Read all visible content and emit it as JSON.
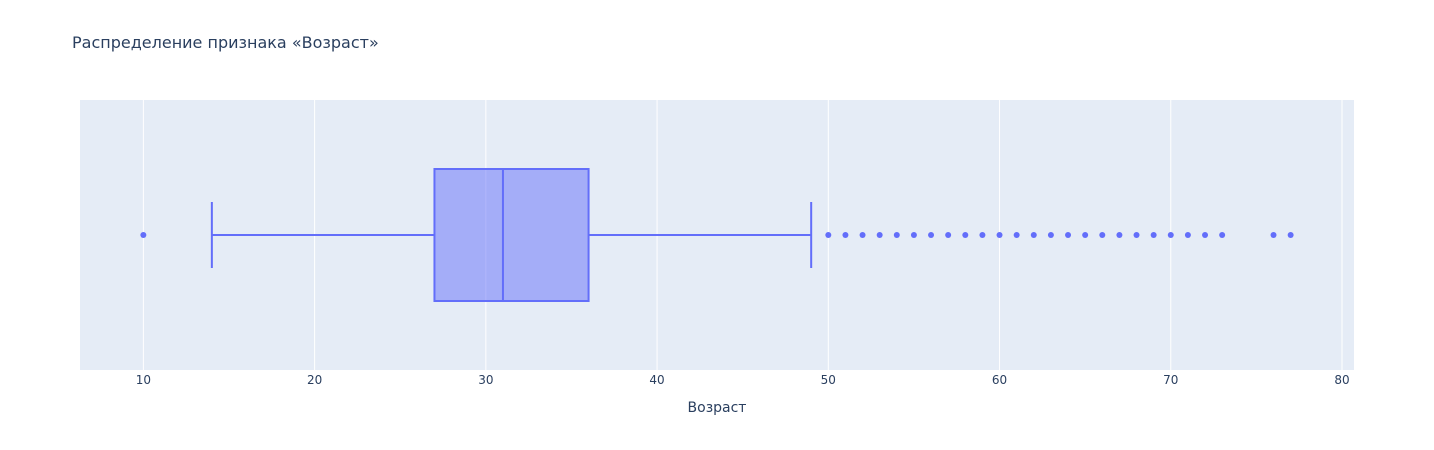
{
  "chart_data": {
    "type": "box",
    "title": "Распределение признака «Возраст»",
    "xlabel": "Возраст",
    "ylabel": "",
    "xlim": [
      6.3,
      80.7
    ],
    "xticks": [
      10,
      20,
      30,
      40,
      50,
      60,
      70,
      80
    ],
    "grid": true,
    "orientation": "horizontal",
    "box": {
      "lower_fence": 14,
      "q1": 27,
      "median": 31,
      "q3": 36,
      "upper_fence": 49
    },
    "outliers": [
      10,
      50,
      51,
      52,
      53,
      54,
      55,
      56,
      57,
      58,
      59,
      60,
      61,
      62,
      63,
      64,
      65,
      66,
      67,
      68,
      69,
      70,
      71,
      72,
      73,
      76,
      77
    ],
    "colors": {
      "box_line": "#636efa",
      "box_fill": "rgba(99,110,250,0.5)",
      "plot_bg": "#e5ecf6",
      "grid": "#ffffff",
      "text": "#2a3f5f"
    }
  }
}
